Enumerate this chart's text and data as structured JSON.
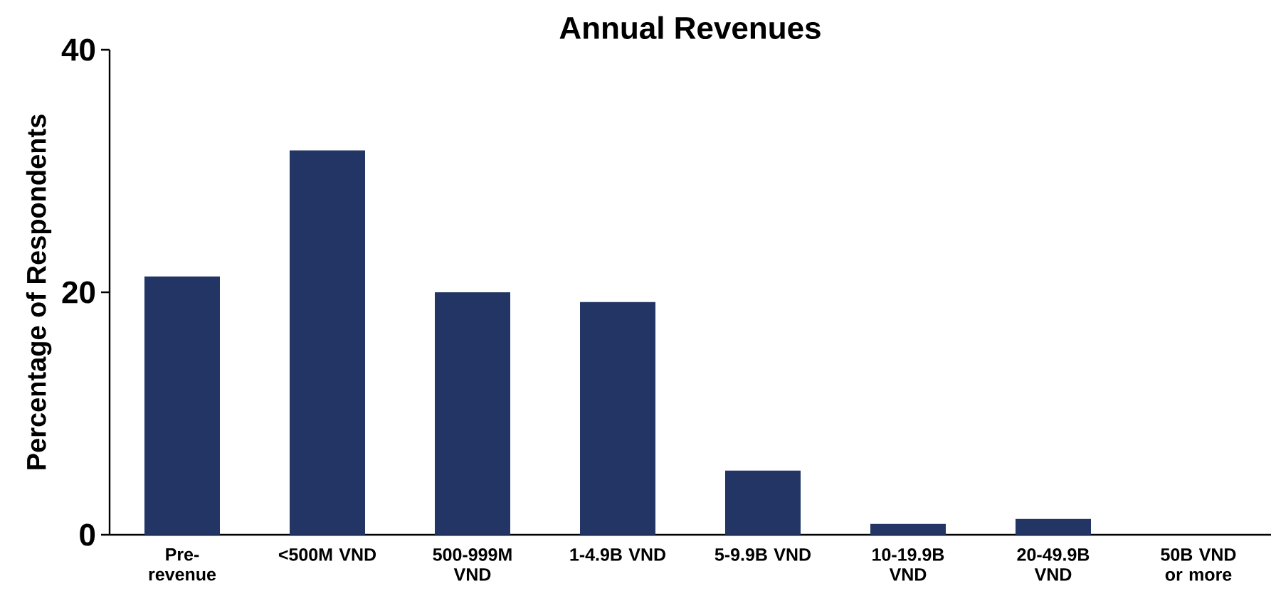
{
  "chart_data": {
    "type": "bar",
    "title": "Annual Revenues",
    "ylabel": "Percentage of Respondents",
    "categories": [
      "Pre-revenue",
      "<500M VND",
      "500-999M VND",
      "1-4.9B VND",
      "5-9.9B VND",
      "10-19.9B VND",
      "20-49.9B VND",
      "50B VND or more"
    ],
    "values": [
      21.3,
      31.7,
      20.0,
      19.2,
      5.3,
      0.9,
      1.3,
      0
    ],
    "color": "#223564",
    "ylim": [
      0,
      40
    ],
    "yticks": [
      0,
      20,
      40
    ],
    "grid": false
  }
}
